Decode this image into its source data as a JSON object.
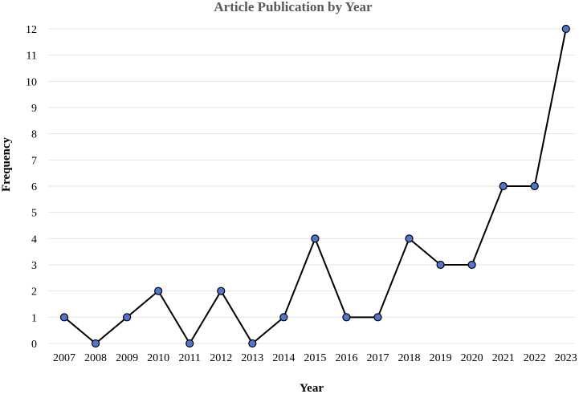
{
  "chart_data": {
    "type": "line",
    "title": "Article Publication by Year",
    "xlabel": "Year",
    "ylabel": "Frequency",
    "categories": [
      "2007",
      "2008",
      "2009",
      "2010",
      "2011",
      "2012",
      "2013",
      "2014",
      "2015",
      "2016",
      "2017",
      "2018",
      "2019",
      "2020",
      "2021",
      "2022",
      "2023"
    ],
    "series": [
      {
        "values": [
          1,
          0,
          1,
          2,
          0,
          2,
          0,
          1,
          4,
          1,
          1,
          4,
          3,
          3,
          6,
          6,
          12
        ]
      }
    ],
    "ylim": [
      0,
      12
    ],
    "yticks": [
      "0",
      "1",
      "2",
      "3",
      "4",
      "5",
      "6",
      "7",
      "8",
      "9",
      "10",
      "11",
      "12"
    ],
    "grid": true,
    "legend": "none",
    "colors": {
      "line": "#000000",
      "marker_fill": "#4f77d0",
      "grid": "#e6e6e6"
    }
  }
}
